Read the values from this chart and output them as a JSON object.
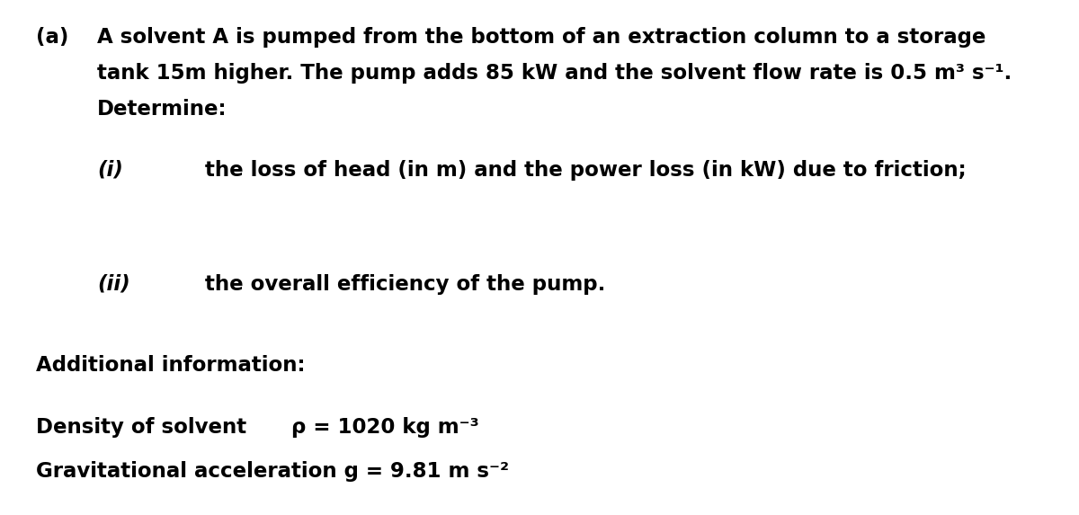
{
  "background_color": "#ffffff",
  "label_a": "(a)",
  "para1_line1": "A solvent A is pumped from the bottom of an extraction column to a storage",
  "para1_line2": "tank 15m higher. The pump adds 85 kW and the solvent flow rate is 0.5 m³ s⁻¹.",
  "para1_line3": "Determine:",
  "label_i": "(i)",
  "text_i": "the loss of head (in m) and the power loss (in kW) due to friction;",
  "label_ii": "(ii)",
  "text_ii": "the overall efficiency of the pump.",
  "additional_title": "Additional information:",
  "density_label": "Density of solvent",
  "density_value": "ρ = 1020 kg m⁻³",
  "gravity_label": "Gravitational acceleration g = 9.81 m s⁻²",
  "font_size_main": 16.5,
  "font_family": "DejaVu Sans"
}
